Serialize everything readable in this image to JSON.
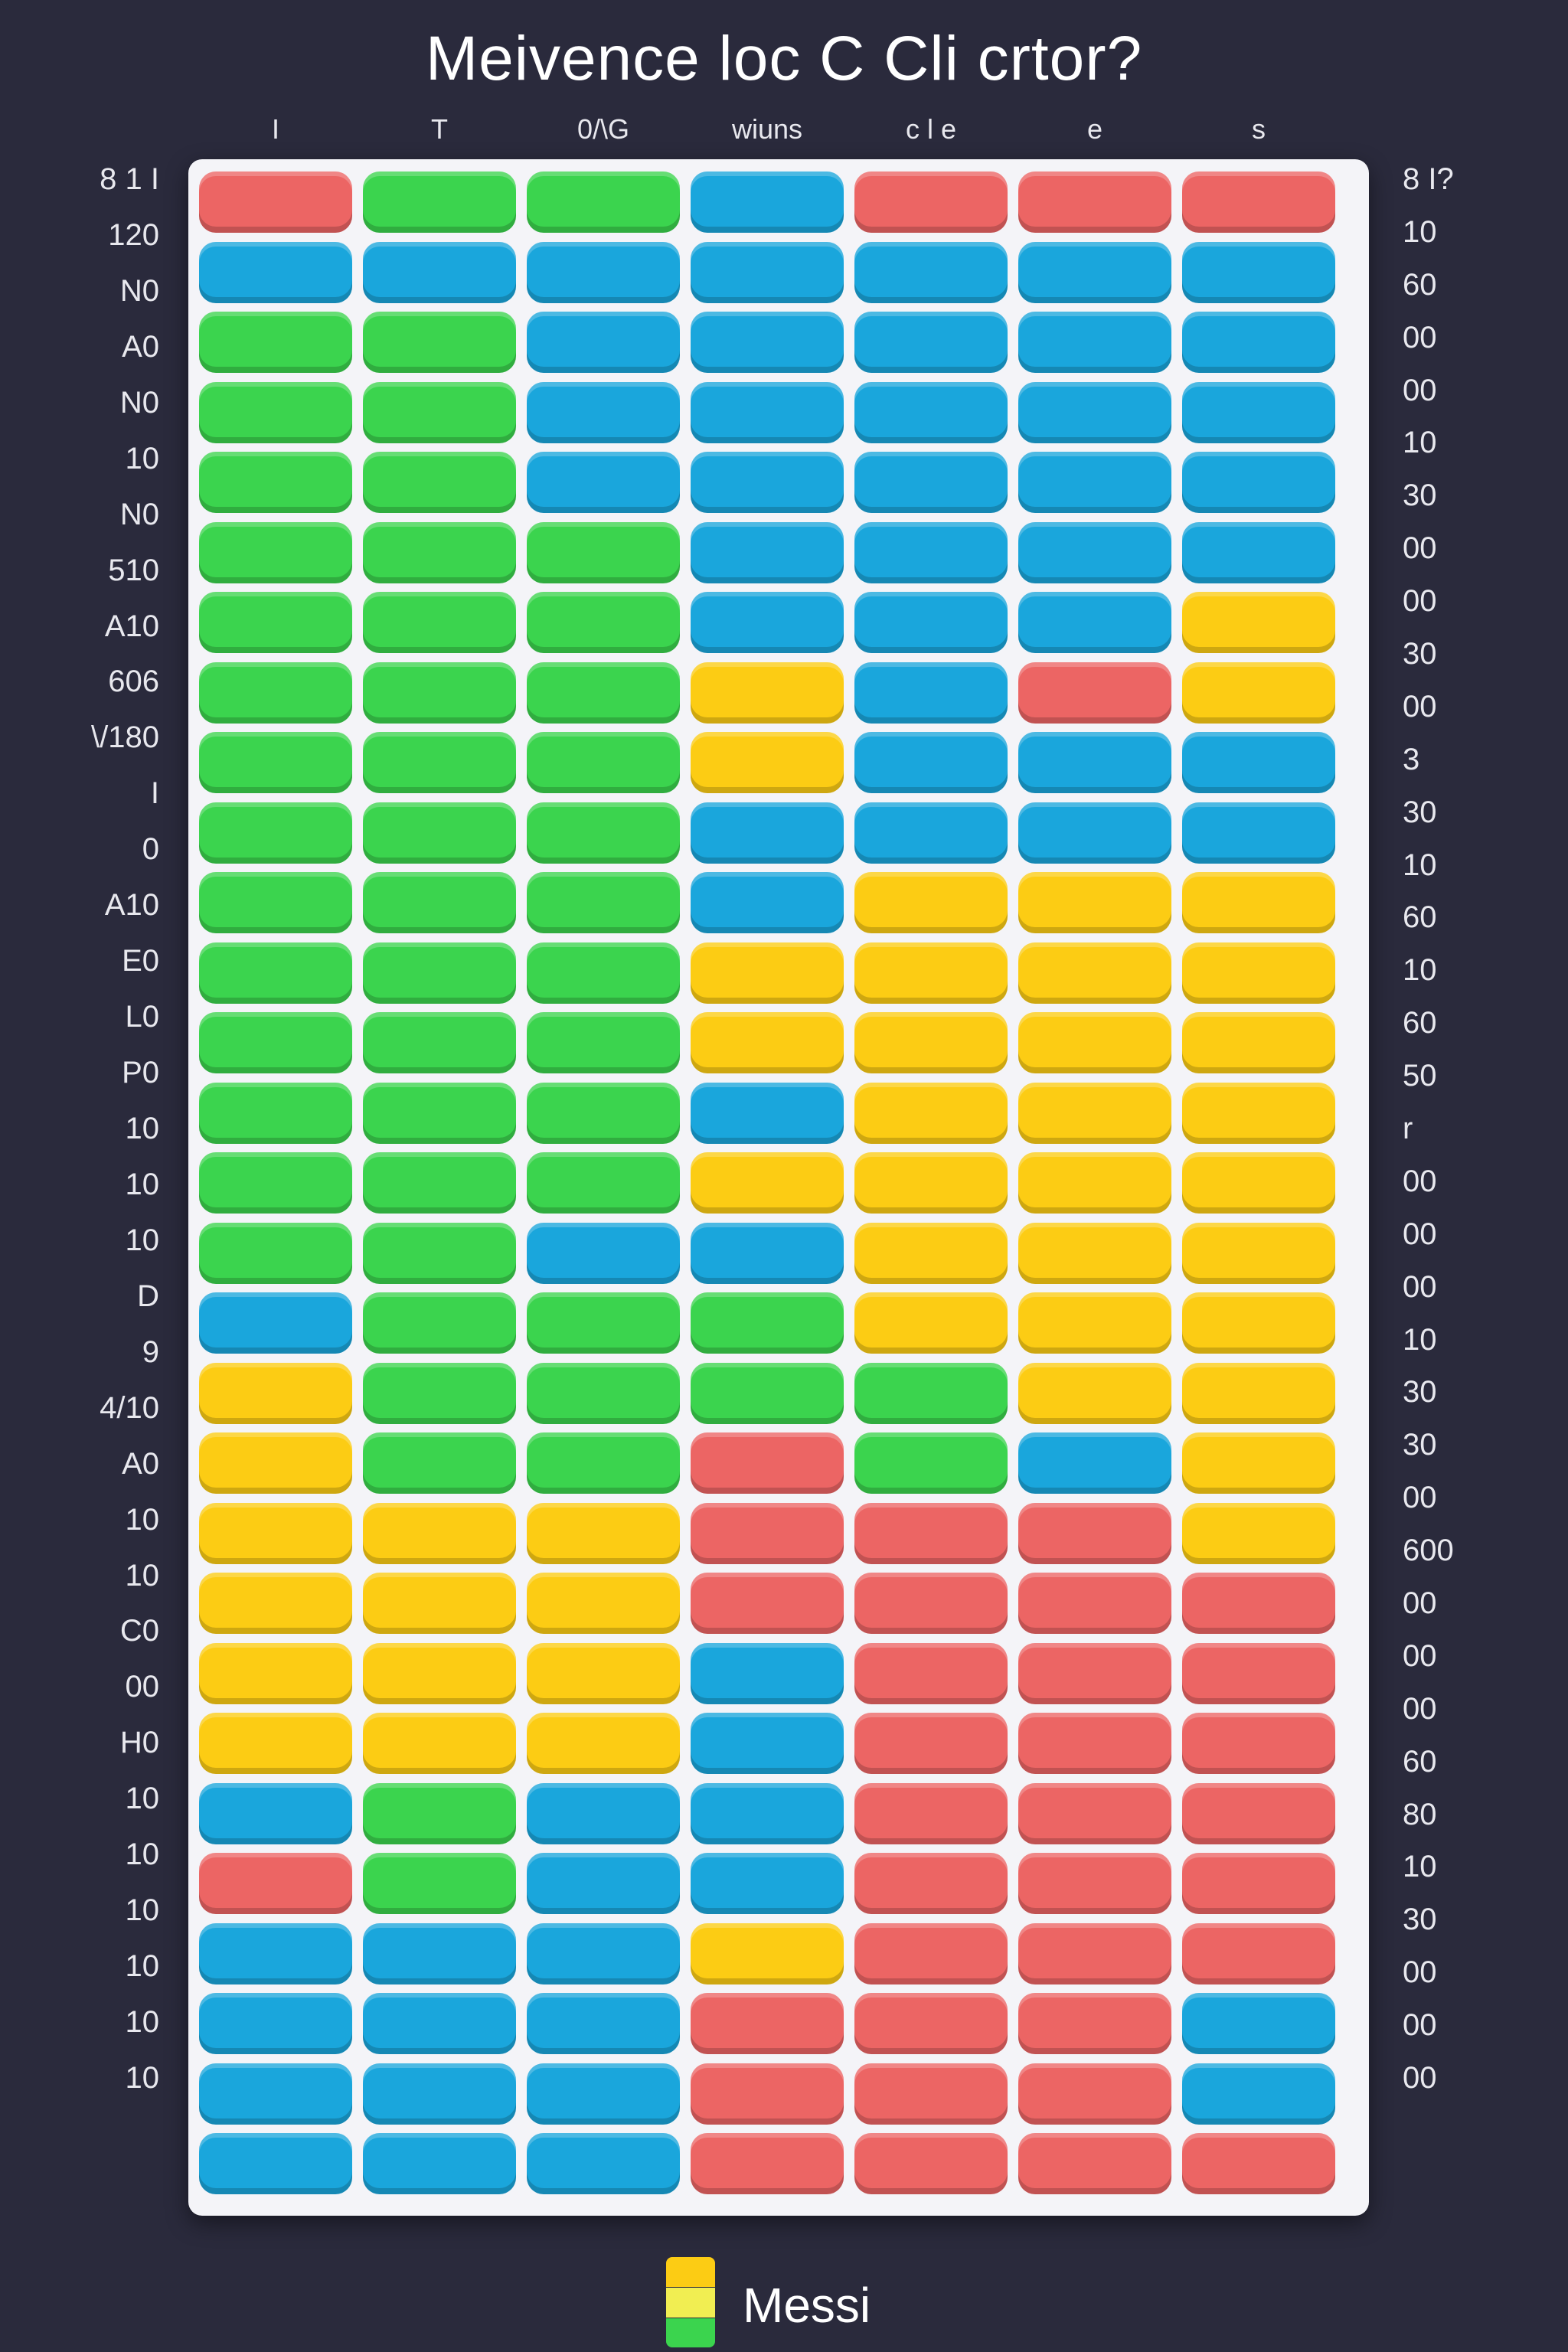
{
  "chart_data": {
    "type": "heatmap",
    "title": "Meivence loc C Cli crtor?",
    "column_labels": [
      "I",
      "T",
      "0/\\G",
      "wiuns",
      "c l e",
      "e",
      "s"
    ],
    "left_ticks": [
      "8 1 I",
      "120",
      "N0",
      "A0",
      "N0",
      "10",
      "N0",
      "510",
      "A10",
      "606",
      "\\/180",
      "I",
      "0",
      "A10",
      "E0",
      "L0",
      "P0",
      "10",
      "10",
      "10",
      "D",
      "9",
      "4/10",
      "A0",
      "10",
      "10",
      "C0",
      "00",
      "H0",
      "10",
      "10",
      "10",
      "10",
      "10",
      "10"
    ],
    "right_ticks": [
      "8 I?",
      "10",
      "60",
      "00",
      "00",
      "10",
      "30",
      "00",
      "00",
      "30",
      "00",
      "3",
      "30",
      "10",
      "60",
      "10",
      "60",
      "50",
      "r",
      "00",
      "00",
      "00",
      "10",
      "30",
      "30",
      "00",
      "600",
      "00",
      "00",
      "00",
      "60",
      "80",
      "10",
      "30",
      "00",
      "00",
      "00"
    ],
    "legend": [
      {
        "label": "Messi"
      }
    ],
    "color_key": {
      "R": "#ec6564",
      "B": "#1aa6dc",
      "G": "#3bd44e",
      "Y": "#fccc14"
    },
    "columns": [
      "RBGGGGGGGGGGGGGGBYYYYYYBRBBBB",
      "GBGGGGGGGGGGGGGGGGGYYYYGGBBBB",
      "GBBBBGGGGGGGGGGBGGGYYYYBBBBBB",
      "BBBBBBBYYBBYYBYBGGRRRBBBBYRRR",
      "RBBBBBBBBBYYYYYYYGGRRRRRRRRRR",
      "RBBBBBBRBBYYYYYYYYBRRRRRRRRRR",
      "RBBBBBYYBBYYYYYYYYYYRRRRRRBBR"
    ]
  },
  "colors": {
    "background": "#2a2a3c",
    "board": "#f4f4f8"
  },
  "legend_swatch": [
    "#fccc14",
    "#f1ee52",
    "#3bd44e"
  ]
}
